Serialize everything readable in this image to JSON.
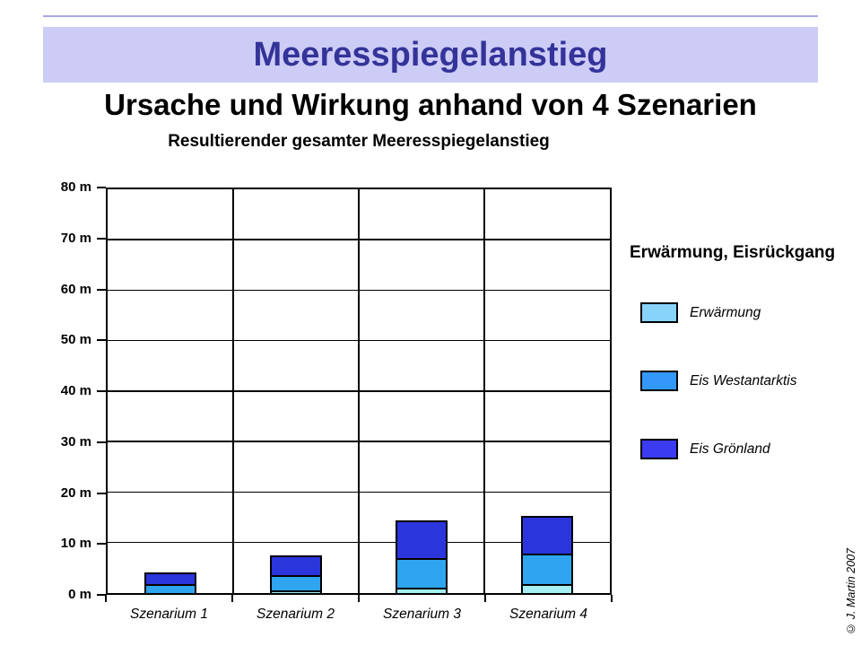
{
  "page": {
    "header": {
      "text": "Meeresspiegelanstieg",
      "bg_color": "#CCCCF6",
      "text_color": "#333399",
      "top_rule_color": "#A8A8E4"
    },
    "subtitle": "Ursache und Wirkung anhand von 4 Szenarien",
    "credit": "© J. Martin 2007"
  },
  "chart_data": {
    "type": "bar",
    "stacked": true,
    "title": "Resultierender gesamter Meeresspiegelanstieg",
    "categories": [
      "Szenarium 1",
      "Szenarium 2",
      "Szenarium 3",
      "Szenarium 4"
    ],
    "series": [
      {
        "name": "Erwärmung",
        "values": [
          0.0,
          0.5,
          1.0,
          1.8
        ],
        "legend_color": "#87D3FA",
        "bar_color": "#A5EFF3"
      },
      {
        "name": "Eis Westantarktis",
        "values": [
          1.7,
          3.0,
          5.9,
          6.0
        ],
        "legend_color": "#3498FA",
        "bar_color": "#2FA4EF"
      },
      {
        "name": "Eis Grönland",
        "values": [
          2.0,
          3.6,
          7.1,
          7.2
        ],
        "legend_color": "#3B3BF2",
        "bar_color": "#2A35DC"
      }
    ],
    "totals_m": [
      3.7,
      7.1,
      14.0,
      15.0
    ],
    "unit": "m",
    "y_ticks": [
      "80 m",
      "70 m",
      "60 m",
      "50 m",
      "40 m",
      "30 m",
      "20 m",
      "10 m",
      "0 m"
    ],
    "ylim": [
      0,
      80
    ],
    "grid": true,
    "legend": {
      "title": "Erwärmung, Eisrückgang",
      "position": "right"
    }
  }
}
